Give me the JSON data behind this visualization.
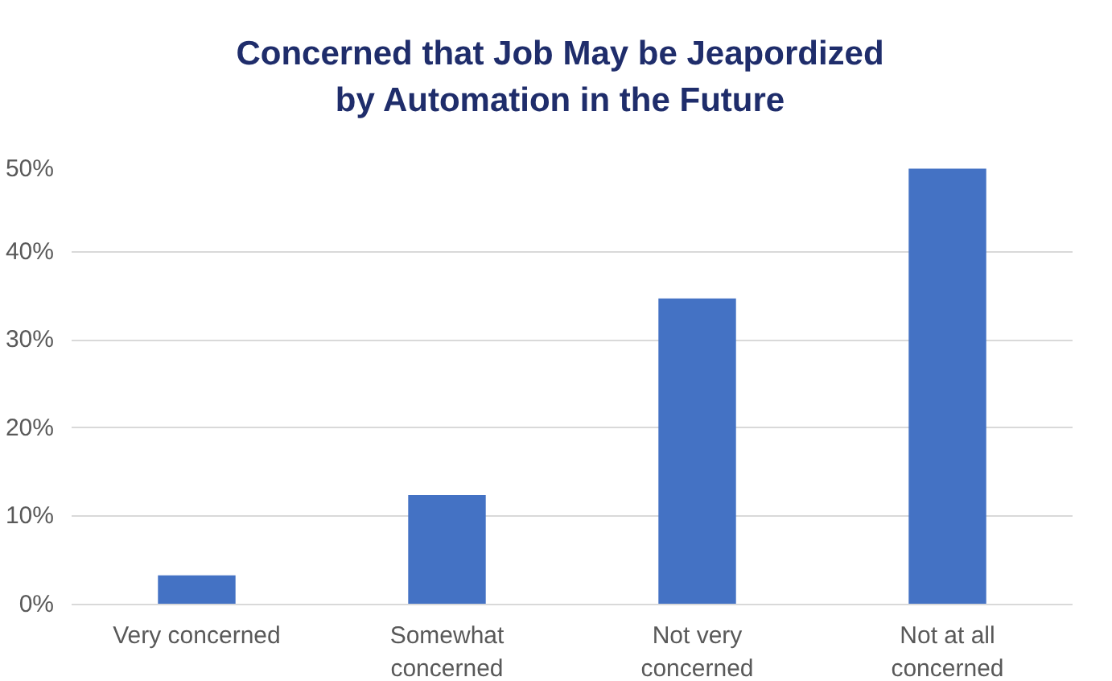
{
  "chart_data": {
    "type": "bar",
    "title": "Concerned that Job May be Jeapordized by Automation in the Future",
    "categories": [
      "Very concerned",
      "Somewhat\nconcerned",
      "Not very\nconcerned",
      "Not at all\nconcerned"
    ],
    "values": [
      3.3,
      12.4,
      34.7,
      49.4
    ],
    "color": "#4472c4",
    "ylim": [
      0,
      50
    ],
    "yticks": [
      {
        "value": 0,
        "label": "0%"
      },
      {
        "value": 10,
        "label": "10%"
      },
      {
        "value": 20,
        "label": "20%"
      },
      {
        "value": 30,
        "label": "30%"
      },
      {
        "value": 40,
        "label": "40%"
      },
      {
        "value": 50,
        "label": "50%"
      }
    ],
    "grid": "y"
  }
}
